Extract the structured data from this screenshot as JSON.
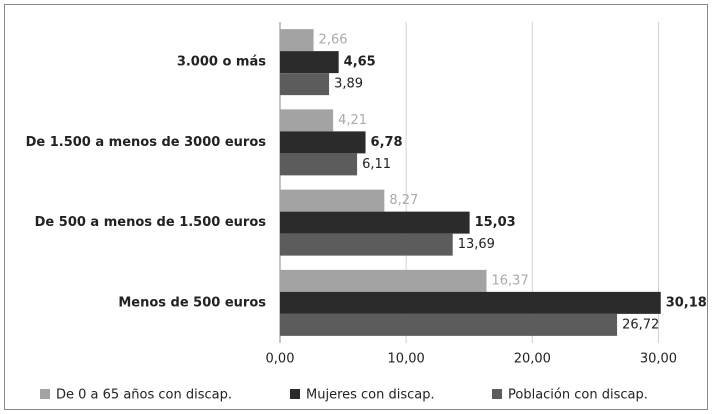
{
  "chart_data": {
    "type": "hbar",
    "categories": [
      "3.000 o más",
      "De 1.500 a menos de 3000 euros",
      "De 500 a menos de 1.500 euros",
      "Menos de 500 euros"
    ],
    "series": [
      {
        "name": "De 0 a 65 años con discap.",
        "color": "#a3a3a3",
        "values": [
          2.66,
          4.21,
          8.27,
          16.37
        ],
        "value_labels": [
          "2,66",
          "4,21",
          "8,27",
          "16,37"
        ]
      },
      {
        "name": "Mujeres con discap.",
        "color": "#2b2b2b",
        "values": [
          4.65,
          6.78,
          15.03,
          30.18
        ],
        "value_labels": [
          "4,65",
          "6,78",
          "15,03",
          "30,18"
        ]
      },
      {
        "name": "Población con discap.",
        "color": "#5c5c5c",
        "values": [
          3.89,
          6.11,
          13.69,
          26.72
        ],
        "value_labels": [
          "3,89",
          "6,11",
          "13,69",
          "26,72"
        ]
      }
    ],
    "xlim": [
      0,
      32.5
    ],
    "xticks": [
      {
        "value": 0,
        "label": "0,00"
      },
      {
        "value": 10,
        "label": "10,00"
      },
      {
        "value": 20,
        "label": "20,00"
      },
      {
        "value": 30,
        "label": "30,00"
      }
    ],
    "grid": true,
    "legend": "bottom"
  }
}
